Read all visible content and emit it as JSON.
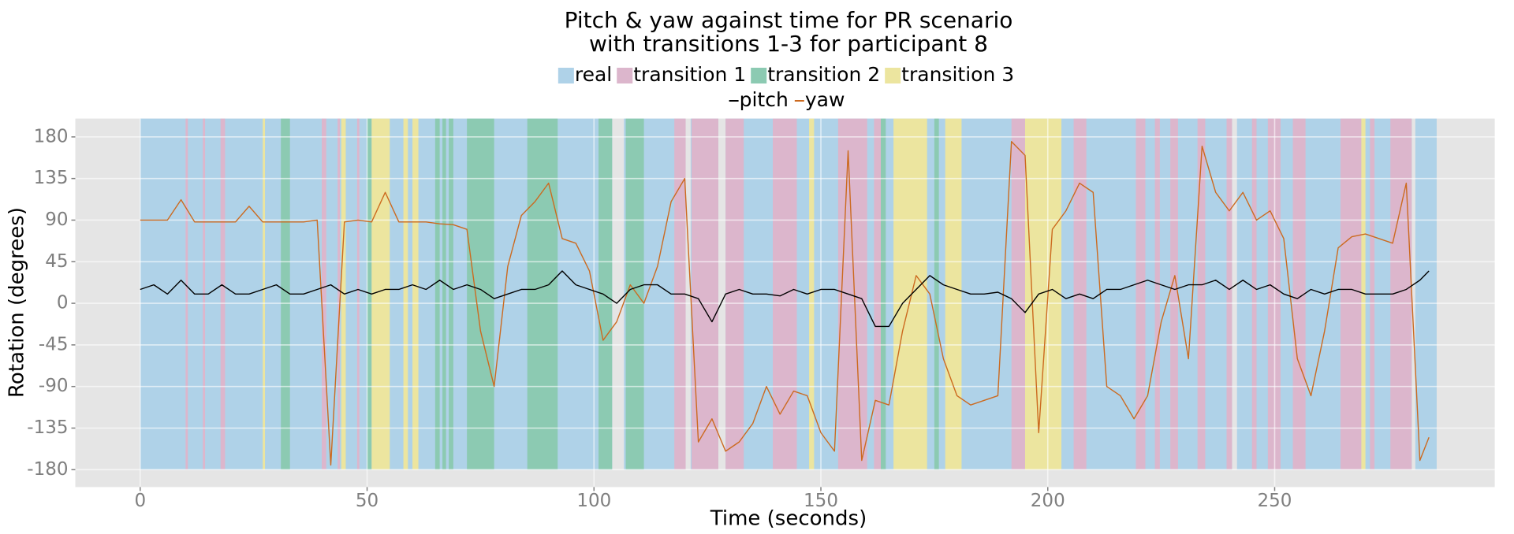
{
  "chart_data": {
    "type": "line",
    "title": [
      "Pitch & yaw against time for PR scenario",
      "with transitions 1-3 for participant 8"
    ],
    "x_label": "Time (seconds)",
    "y_label": "Rotation (degrees)",
    "xlim": [
      -14.3,
      298.5
    ],
    "ylim": [
      -198.8,
      199.8
    ],
    "xticks": [
      0,
      50,
      100,
      150,
      200,
      250
    ],
    "yticks": [
      -180,
      -135,
      -90,
      -45,
      0,
      45,
      90,
      135,
      180
    ],
    "grid": true,
    "band_ymin": -180,
    "bands": [
      {
        "name": "real",
        "color": "#afd2e8",
        "intervals": [
          [
            0,
            104
          ],
          [
            106.6,
            120.2
          ],
          [
            121.3,
            127.4
          ],
          [
            129,
            240.6
          ],
          [
            241.7,
            280.2
          ],
          [
            281,
            285.7
          ]
        ]
      },
      {
        "name": "transition 1",
        "color": "#dcb6cc",
        "intervals": [
          [
            10,
            10.5
          ],
          [
            13.8,
            14.3
          ],
          [
            17.7,
            18.7
          ],
          [
            40,
            41
          ],
          [
            43.5,
            44
          ],
          [
            47.8,
            48.3
          ],
          [
            117.7,
            120.2
          ],
          [
            121.5,
            127.4
          ],
          [
            129,
            133
          ],
          [
            139.4,
            144.7
          ],
          [
            153.8,
            160.2
          ],
          [
            161.7,
            163.2
          ],
          [
            192,
            195
          ],
          [
            205.7,
            208.5
          ],
          [
            219.4,
            221.5
          ],
          [
            223.6,
            224.7
          ],
          [
            227,
            228.7
          ],
          [
            233,
            234.7
          ],
          [
            239.4,
            240.6
          ],
          [
            245,
            246
          ],
          [
            248.5,
            251.3
          ],
          [
            254,
            256.8
          ],
          [
            264.5,
            269.1
          ],
          [
            271,
            272
          ],
          [
            275.5,
            280.2
          ]
        ]
      },
      {
        "name": "transition 2",
        "color": "#8ccab2",
        "intervals": [
          [
            31,
            33
          ],
          [
            50,
            51
          ],
          [
            65,
            66
          ],
          [
            66.6,
            67.4
          ],
          [
            68,
            69
          ],
          [
            72,
            78
          ],
          [
            85.3,
            92
          ],
          [
            101,
            104
          ],
          [
            107,
            111
          ],
          [
            163.2,
            164.3
          ],
          [
            175,
            176
          ]
        ]
      },
      {
        "name": "transition 3",
        "color": "#ece59f",
        "intervals": [
          [
            27,
            27.5
          ],
          [
            44.3,
            45.3
          ],
          [
            51,
            55
          ],
          [
            58,
            59
          ],
          [
            60,
            61.3
          ],
          [
            147.4,
            148.5
          ],
          [
            166,
            173.4
          ],
          [
            177.4,
            181
          ],
          [
            195,
            203
          ],
          [
            269.1,
            270
          ]
        ]
      }
    ],
    "x": [
      0,
      3,
      6,
      9,
      12,
      15,
      18,
      21,
      24,
      27,
      30,
      33,
      36,
      39,
      42,
      45,
      48,
      51,
      54,
      57,
      60,
      63,
      66,
      69,
      72,
      75,
      78,
      81,
      84,
      87,
      90,
      93,
      96,
      99,
      102,
      105,
      108,
      111,
      114,
      117,
      120,
      123,
      126,
      129,
      132,
      135,
      138,
      141,
      144,
      147,
      150,
      153,
      156,
      159,
      162,
      165,
      168,
      171,
      174,
      177,
      180,
      183,
      186,
      189,
      192,
      195,
      198,
      201,
      204,
      207,
      210,
      213,
      216,
      219,
      222,
      225,
      228,
      231,
      234,
      237,
      240,
      243,
      246,
      249,
      252,
      255,
      258,
      261,
      264,
      267,
      270,
      273,
      276,
      279,
      282,
      284
    ],
    "series": [
      {
        "name": "pitch",
        "color": "#000000",
        "values": [
          15,
          20,
          10,
          25,
          10,
          10,
          20,
          10,
          10,
          15,
          20,
          10,
          10,
          15,
          20,
          10,
          15,
          10,
          15,
          15,
          20,
          15,
          25,
          15,
          20,
          15,
          5,
          10,
          15,
          15,
          20,
          35,
          20,
          15,
          10,
          0,
          15,
          20,
          20,
          10,
          10,
          5,
          -20,
          10,
          15,
          10,
          10,
          8,
          15,
          10,
          15,
          15,
          10,
          5,
          -25,
          -25,
          0,
          15,
          30,
          20,
          15,
          10,
          10,
          12,
          5,
          -10,
          10,
          15,
          5,
          10,
          5,
          15,
          15,
          20,
          25,
          20,
          15,
          20,
          20,
          25,
          15,
          25,
          15,
          20,
          10,
          5,
          15,
          10,
          15,
          15,
          10,
          10,
          10,
          15,
          25,
          35
        ]
      },
      {
        "name": "yaw",
        "color": "#cc6a1f",
        "values": [
          90,
          90,
          90,
          112,
          88,
          88,
          88,
          88,
          105,
          88,
          88,
          88,
          88,
          90,
          -175,
          88,
          90,
          88,
          120,
          88,
          88,
          88,
          86,
          85,
          80,
          -30,
          -90,
          40,
          95,
          110,
          130,
          70,
          65,
          35,
          -40,
          -20,
          20,
          0,
          40,
          110,
          135,
          -150,
          -125,
          -160,
          -150,
          -130,
          -90,
          -120,
          -95,
          -100,
          -140,
          -160,
          165,
          -170,
          -105,
          -110,
          -30,
          30,
          10,
          -60,
          -100,
          -110,
          -105,
          -100,
          175,
          160,
          -140,
          80,
          100,
          130,
          120,
          -90,
          -100,
          -125,
          -100,
          -20,
          30,
          -60,
          170,
          120,
          100,
          120,
          90,
          100,
          70,
          -60,
          -100,
          -30,
          60,
          72,
          75,
          70,
          65,
          130,
          -170,
          -145
        ]
      }
    ]
  }
}
